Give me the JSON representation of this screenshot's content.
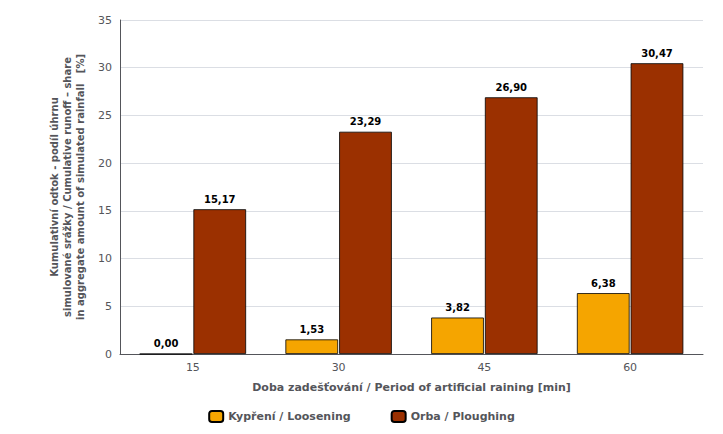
{
  "chart_data": {
    "type": "bar",
    "categories": [
      "15",
      "30",
      "45",
      "60"
    ],
    "series": [
      {
        "name": "Kypření / Loosening",
        "color": "#F5A500",
        "values": [
          0.0,
          1.53,
          3.82,
          6.38
        ],
        "value_labels": [
          "0,00",
          "1,53",
          "3,82",
          "6,38"
        ]
      },
      {
        "name": "Orba / Ploughing",
        "color": "#9B3000",
        "values": [
          15.17,
          23.29,
          26.9,
          30.47
        ],
        "value_labels": [
          "15,17",
          "23,29",
          "26,90",
          "30,47"
        ]
      }
    ],
    "xlabel": "Doba zadešťování / Period of artificial raining [min]",
    "ylabel": "Kumulativní odtok - podíl úhrnu\nsimulované srážky / Cumulative runoff – share\nin aggregate amount of simulated rainfall   [%]",
    "ylim": [
      0,
      35
    ],
    "yticks": [
      0,
      5,
      10,
      15,
      20,
      25,
      30,
      35
    ],
    "grid": true,
    "legend": "bottom",
    "data_labels": true
  }
}
